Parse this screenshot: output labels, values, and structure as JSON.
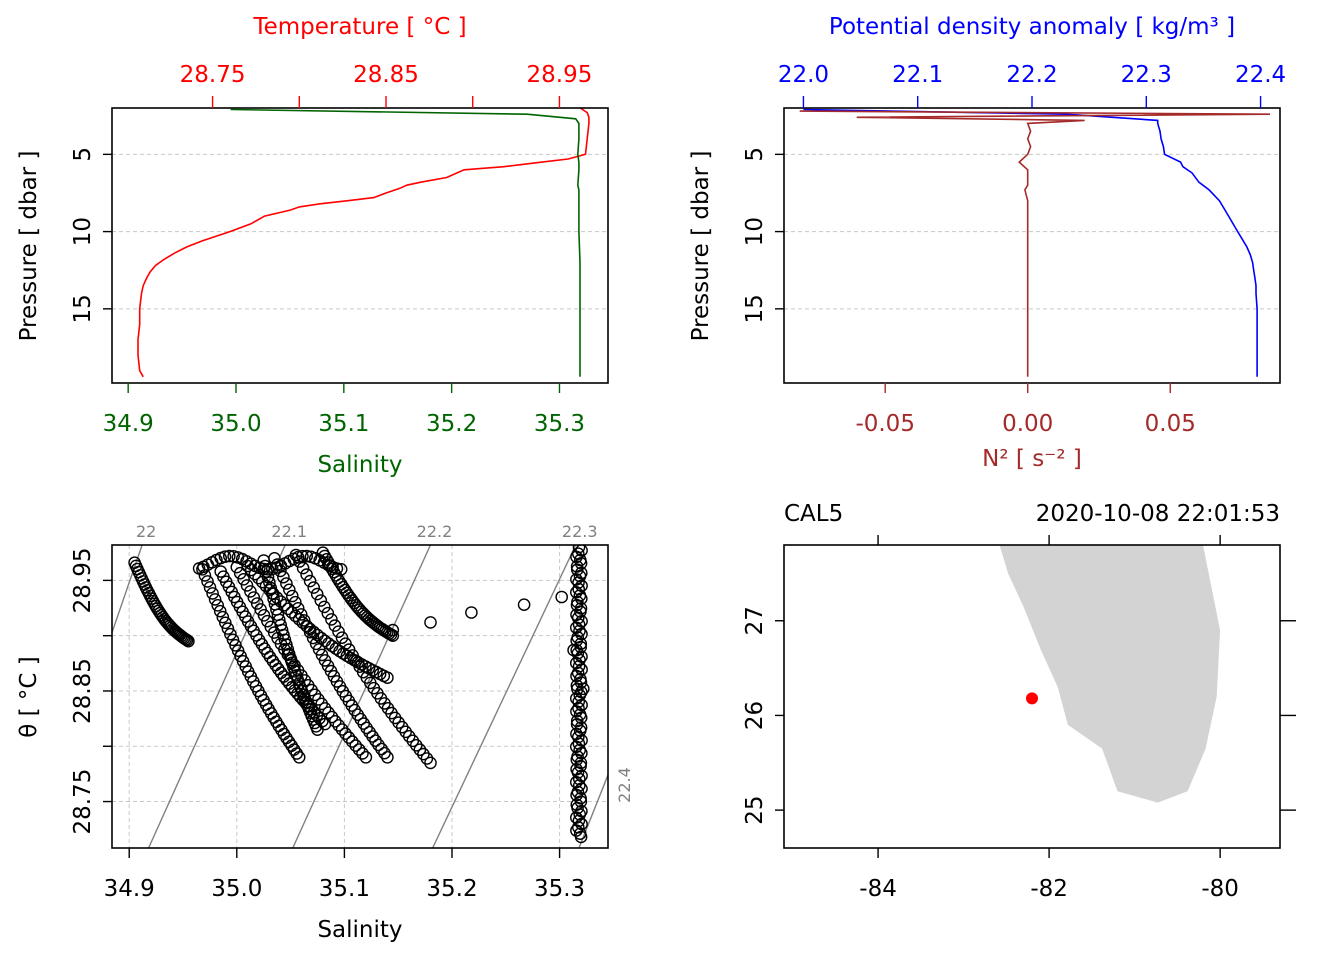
{
  "colors": {
    "temperature": "#ff0000",
    "salinity": "#006400",
    "density": "#0000ff",
    "n2": "#a52a2a",
    "isopycnal": "#808080",
    "land": "#d3d3d3",
    "station": "#ff0000",
    "axis": "#000000"
  },
  "chart_data": [
    {
      "id": "profile_ts",
      "type": "line",
      "title_top": "Temperature [ °C ]",
      "xlabel": "Salinity",
      "ylabel": "Pressure [ dbar ]",
      "top_ticks": [
        "28.75",
        "28.85",
        "28.95"
      ],
      "top_tick_values": [
        28.75,
        28.85,
        28.95
      ],
      "top_minor_ticks": [
        28.8,
        28.9
      ],
      "bottom_ticks": [
        "34.9",
        "35.0",
        "35.1",
        "35.2",
        "35.3"
      ],
      "bottom_tick_values": [
        34.9,
        35.0,
        35.1,
        35.2,
        35.3
      ],
      "y_ticks": [
        "5",
        "10",
        "15"
      ],
      "y_tick_values": [
        5,
        10,
        15
      ],
      "xlim_salinity": [
        34.885,
        35.345
      ],
      "xlim_temperature": [
        28.692,
        28.978
      ],
      "ylim": [
        19.8,
        2.0
      ],
      "y_reversed": true,
      "grid": true,
      "series": [
        {
          "key": "temperature",
          "x_axis": "top",
          "pressure": [
            2.0,
            2.3,
            2.6,
            3.0,
            4.0,
            5.0,
            5.3,
            5.5,
            5.8,
            6.0,
            6.5,
            6.8,
            7.0,
            7.2,
            7.5,
            7.8,
            8.0,
            8.2,
            8.4,
            8.6,
            9.0,
            9.5,
            10.0,
            10.3,
            10.6,
            11.0,
            11.4,
            11.8,
            12.2,
            12.6,
            13.0,
            13.5,
            14.0,
            15.0,
            16.0,
            17.0,
            18.0,
            19.0,
            19.4
          ],
          "values": [
            28.962,
            28.966,
            28.967,
            28.967,
            28.966,
            28.965,
            28.955,
            28.94,
            28.918,
            28.895,
            28.885,
            28.87,
            28.862,
            28.858,
            28.85,
            28.843,
            28.828,
            28.812,
            28.8,
            28.795,
            28.78,
            28.772,
            28.76,
            28.752,
            28.744,
            28.735,
            28.728,
            28.722,
            28.717,
            28.714,
            28.712,
            28.71,
            28.709,
            28.708,
            28.708,
            28.707,
            28.707,
            28.708,
            28.71
          ]
        },
        {
          "key": "salinity",
          "x_axis": "bottom",
          "pressure": [
            2.1,
            2.4,
            2.7,
            3.0,
            4.0,
            5.0,
            5.5,
            6.0,
            7.0,
            7.3,
            8.0,
            10.0,
            12.0,
            15.0,
            17.0,
            19.0,
            19.4
          ],
          "values": [
            34.995,
            35.27,
            35.315,
            35.318,
            35.318,
            35.317,
            35.318,
            35.318,
            35.317,
            35.318,
            35.318,
            35.318,
            35.319,
            35.319,
            35.319,
            35.319,
            35.319
          ]
        }
      ]
    },
    {
      "id": "profile_density",
      "type": "line",
      "title_top": "Potential density anomaly [ kg/m³ ]",
      "xlabel": "N² [ s⁻² ]",
      "ylabel": "Pressure [ dbar ]",
      "top_ticks": [
        "22.0",
        "22.1",
        "22.2",
        "22.3",
        "22.4"
      ],
      "top_tick_values": [
        22.0,
        22.1,
        22.2,
        22.3,
        22.4
      ],
      "bottom_ticks": [
        "-0.05",
        "0.00",
        "0.05"
      ],
      "bottom_tick_values": [
        -0.05,
        0.0,
        0.05
      ],
      "y_ticks": [
        "5",
        "10",
        "15"
      ],
      "y_tick_values": [
        5,
        10,
        15
      ],
      "xlim_density": [
        21.983,
        22.417
      ],
      "xlim_n2": [
        -0.0855,
        0.0885
      ],
      "ylim": [
        19.8,
        2.0
      ],
      "y_reversed": true,
      "grid": true,
      "series": [
        {
          "key": "density",
          "x_axis": "top",
          "pressure": [
            2.1,
            2.4,
            2.8,
            3.0,
            3.5,
            4.0,
            4.5,
            5.0,
            5.5,
            5.8,
            6.2,
            6.8,
            7.3,
            8.0,
            8.5,
            9.0,
            9.5,
            10.0,
            10.5,
            11.0,
            11.5,
            12.0,
            12.5,
            13.0,
            13.5,
            14.0,
            15.0,
            16.0,
            17.0,
            18.0,
            19.0,
            19.4
          ],
          "values": [
            22.0,
            22.23,
            22.31,
            22.31,
            22.312,
            22.313,
            22.315,
            22.316,
            22.33,
            22.332,
            22.34,
            22.346,
            22.355,
            22.364,
            22.368,
            22.372,
            22.376,
            22.38,
            22.384,
            22.388,
            22.391,
            22.393,
            22.394,
            22.395,
            22.396,
            22.396,
            22.397,
            22.397,
            22.397,
            22.397,
            22.397,
            22.397
          ]
        },
        {
          "key": "n2",
          "x_axis": "bottom",
          "pressure": [
            2.2,
            2.4,
            2.6,
            2.8,
            3.0,
            3.5,
            4.0,
            4.5,
            5.0,
            5.5,
            6.0,
            7.0,
            7.3,
            8.0,
            10.0,
            12.0,
            15.0,
            17.0,
            19.4
          ],
          "values": [
            -0.08,
            0.085,
            -0.06,
            0.02,
            0.0,
            0.001,
            0.0,
            0.001,
            0.0,
            -0.003,
            0.0,
            0.0,
            -0.001,
            0.0,
            0.0,
            0.0,
            0.0,
            0.0,
            0.0
          ]
        }
      ]
    },
    {
      "id": "ts_diagram",
      "type": "scatter",
      "xlabel": "Salinity",
      "ylabel": "θ [ °C ]",
      "x_ticks": [
        "34.9",
        "35.0",
        "35.1",
        "35.2",
        "35.3"
      ],
      "x_tick_values": [
        34.9,
        35.0,
        35.1,
        35.2,
        35.3
      ],
      "y_ticks": [
        "28.75",
        "28.85",
        "28.95"
      ],
      "y_tick_values": [
        28.75,
        28.85,
        28.95
      ],
      "y_minor_ticks": [
        28.8,
        28.9
      ],
      "xlim": [
        34.884,
        35.345
      ],
      "ylim": [
        28.708,
        28.982
      ],
      "grid": true,
      "isopycnals": [
        {
          "label": "22",
          "x_top": 34.912,
          "x_bottom": 34.815
        },
        {
          "label": "22.1",
          "x_top": 35.045,
          "x_bottom": 34.918
        },
        {
          "label": "22.2",
          "x_top": 35.18,
          "x_bottom": 35.052
        },
        {
          "label": "22.3",
          "x_top": 35.315,
          "x_bottom": 35.182
        },
        {
          "label": "22.4",
          "x_top": 35.43,
          "x_bottom": 35.318
        }
      ],
      "clusters": [
        {
          "from": [
            34.905,
            28.966
          ],
          "to": [
            34.955,
            28.895
          ]
        },
        {
          "from": [
            34.968,
            28.96
          ],
          "to": [
            35.058,
            28.79
          ]
        },
        {
          "from": [
            34.985,
            28.958
          ],
          "to": [
            35.082,
            28.82
          ]
        },
        {
          "from": [
            35.0,
            28.962
          ],
          "to": [
            35.12,
            28.79
          ]
        },
        {
          "from": [
            35.01,
            28.963
          ],
          "to": [
            35.14,
            28.862
          ]
        },
        {
          "from": [
            35.025,
            28.968
          ],
          "to": [
            35.075,
            28.815
          ]
        },
        {
          "from": [
            35.035,
            28.97
          ],
          "to": [
            35.14,
            28.79
          ]
        },
        {
          "from": [
            35.055,
            28.973
          ],
          "to": [
            35.18,
            28.785
          ]
        },
        {
          "from": [
            35.08,
            28.975
          ],
          "to": [
            35.145,
            28.9
          ]
        }
      ],
      "isolated_points": [
        [
          35.145,
          28.905
        ],
        [
          35.18,
          28.912
        ],
        [
          35.218,
          28.921
        ],
        [
          35.267,
          28.928
        ],
        [
          35.302,
          28.935
        ],
        [
          35.322,
          28.852
        ],
        [
          35.313,
          28.887
        ]
      ],
      "near_vertical_band": {
        "x": 35.318,
        "y_from": 28.98,
        "y_to": 28.718
      }
    },
    {
      "id": "station_map",
      "type": "map",
      "station_label": "CAL5",
      "datetime_label": "2020-10-08 22:01:53",
      "x_ticks": [
        "-84",
        "-82",
        "-80"
      ],
      "x_tick_values": [
        -84,
        -82,
        -80
      ],
      "y_ticks": [
        "25",
        "26",
        "27"
      ],
      "y_tick_values": [
        25,
        26,
        27
      ],
      "xlim": [
        -85.1,
        -79.3
      ],
      "ylim": [
        24.6,
        27.8
      ],
      "station": {
        "lon": -82.2,
        "lat": 26.18
      },
      "land_polygon": [
        [
          -82.58,
          27.8
        ],
        [
          -82.48,
          27.5
        ],
        [
          -82.3,
          27.15
        ],
        [
          -82.1,
          26.7
        ],
        [
          -81.9,
          26.3
        ],
        [
          -81.78,
          25.9
        ],
        [
          -81.38,
          25.65
        ],
        [
          -81.2,
          25.2
        ],
        [
          -80.73,
          25.08
        ],
        [
          -80.38,
          25.2
        ],
        [
          -80.17,
          25.65
        ],
        [
          -80.04,
          26.2
        ],
        [
          -80.0,
          26.9
        ],
        [
          -80.2,
          27.8
        ]
      ]
    }
  ]
}
